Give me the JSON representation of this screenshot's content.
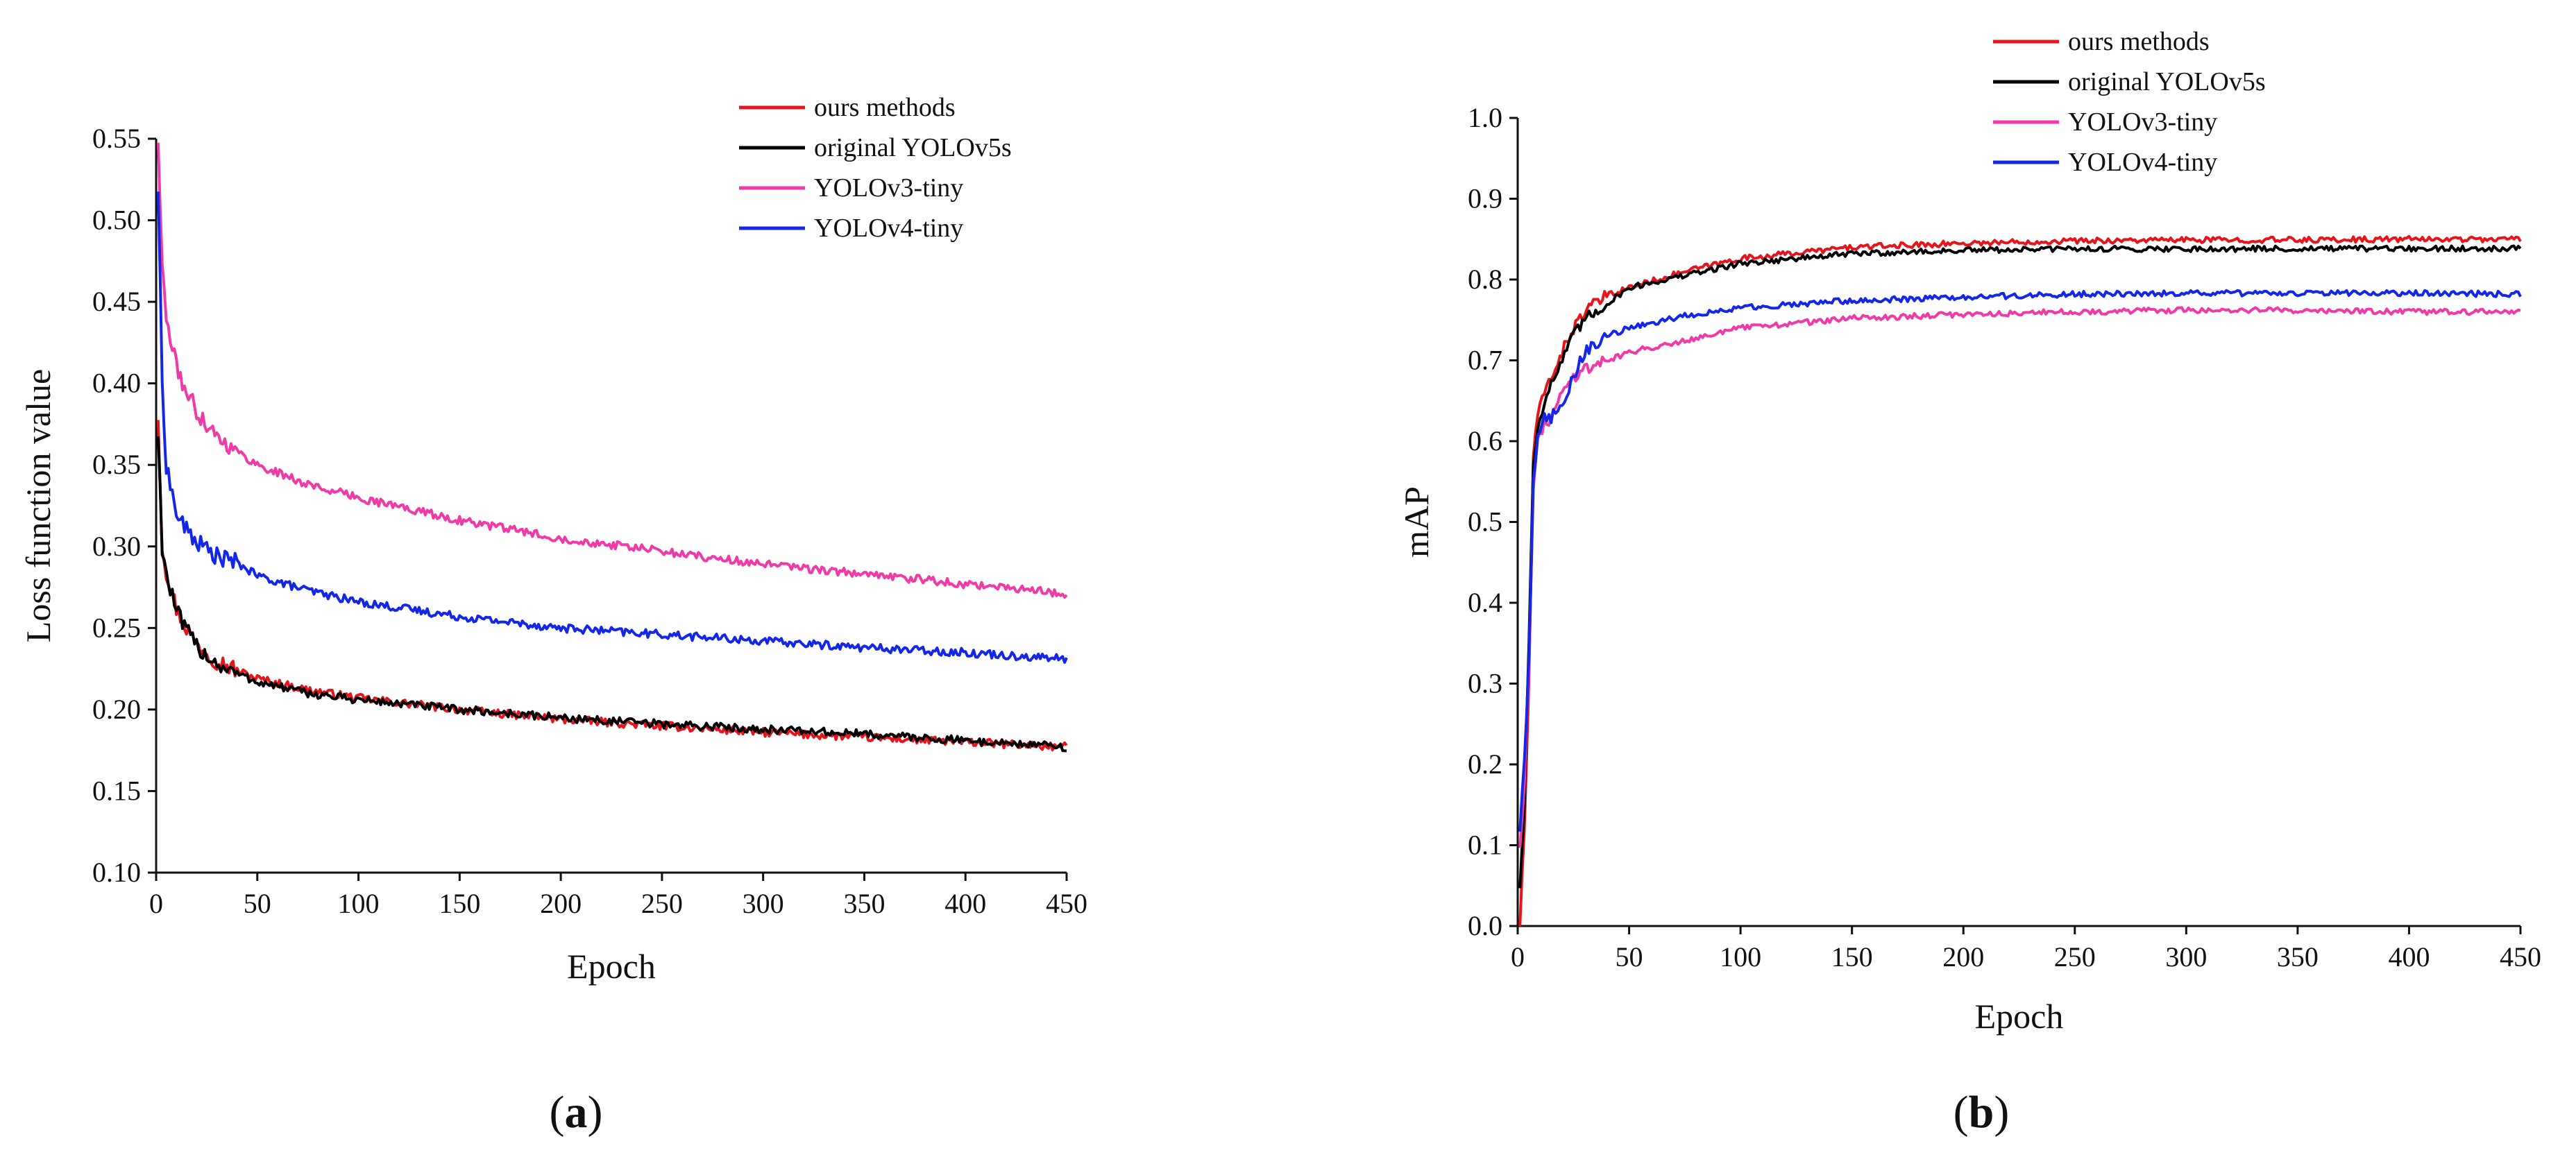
{
  "chart_data": [
    {
      "id": "a",
      "type": "line",
      "panel_label": "a",
      "xlabel": "Epoch",
      "ylabel": "Loss function value",
      "xlim": [
        0,
        450
      ],
      "ylim": [
        0.1,
        0.55
      ],
      "xticks": [
        "0",
        "50",
        "100",
        "150",
        "200",
        "250",
        "300",
        "350",
        "400",
        "450"
      ],
      "yticks": [
        "0.10",
        "0.15",
        "0.20",
        "0.25",
        "0.30",
        "0.35",
        "0.40",
        "0.45",
        "0.50",
        "0.55"
      ],
      "legend_position": "top-right",
      "x": [
        1,
        3,
        5,
        10,
        15,
        20,
        30,
        40,
        50,
        75,
        100,
        150,
        200,
        250,
        300,
        350,
        400,
        450
      ],
      "series": [
        {
          "name": "ours methods",
          "color": "#e8141b",
          "values": [
            0.38,
            0.3,
            0.285,
            0.262,
            0.25,
            0.24,
            0.23,
            0.224,
            0.219,
            0.212,
            0.207,
            0.2,
            0.194,
            0.19,
            0.186,
            0.183,
            0.18,
            0.177
          ]
        },
        {
          "name": "original YOLOv5s",
          "color": "#000000",
          "values": [
            0.37,
            0.3,
            0.283,
            0.26,
            0.248,
            0.239,
            0.228,
            0.222,
            0.217,
            0.21,
            0.206,
            0.2,
            0.195,
            0.191,
            0.188,
            0.185,
            0.181,
            0.177
          ]
        },
        {
          "name": "YOLOv3-tiny",
          "color": "#f03aa8",
          "values": [
            0.55,
            0.47,
            0.44,
            0.41,
            0.395,
            0.383,
            0.368,
            0.358,
            0.35,
            0.338,
            0.33,
            0.316,
            0.305,
            0.297,
            0.289,
            0.283,
            0.277,
            0.271
          ]
        },
        {
          "name": "YOLOv4-tiny",
          "color": "#1427e8",
          "values": [
            0.52,
            0.4,
            0.35,
            0.32,
            0.31,
            0.303,
            0.294,
            0.29,
            0.282,
            0.273,
            0.266,
            0.257,
            0.25,
            0.246,
            0.242,
            0.238,
            0.235,
            0.231
          ]
        }
      ]
    },
    {
      "id": "b",
      "type": "line",
      "panel_label": "b",
      "xlabel": "Epoch",
      "ylabel": "mAP",
      "xlim": [
        0,
        450
      ],
      "ylim": [
        0.0,
        1.0
      ],
      "xticks": [
        "0",
        "50",
        "100",
        "150",
        "200",
        "250",
        "300",
        "350",
        "400",
        "450"
      ],
      "yticks": [
        "0.0",
        "0.1",
        "0.2",
        "0.3",
        "0.4",
        "0.5",
        "0.6",
        "0.7",
        "0.8",
        "0.9",
        "1.0"
      ],
      "legend_position": "top-right",
      "x": [
        1,
        3,
        5,
        7,
        9,
        12,
        15,
        20,
        25,
        30,
        40,
        50,
        75,
        100,
        150,
        200,
        250,
        300,
        350,
        400,
        450
      ],
      "series": [
        {
          "name": "ours methods",
          "color": "#e8141b",
          "values": [
            0.0,
            0.12,
            0.3,
            0.58,
            0.63,
            0.66,
            0.68,
            0.71,
            0.74,
            0.76,
            0.78,
            0.79,
            0.81,
            0.826,
            0.84,
            0.845,
            0.848,
            0.849,
            0.849,
            0.85,
            0.85
          ]
        },
        {
          "name": "original YOLOv5s",
          "color": "#000000",
          "values": [
            0.05,
            0.15,
            0.35,
            0.57,
            0.62,
            0.65,
            0.67,
            0.7,
            0.73,
            0.75,
            0.77,
            0.79,
            0.805,
            0.82,
            0.832,
            0.836,
            0.838,
            0.838,
            0.838,
            0.838,
            0.839
          ]
        },
        {
          "name": "YOLOv3-tiny",
          "color": "#f03aa8",
          "values": [
            0.1,
            0.18,
            0.32,
            0.54,
            0.6,
            0.62,
            0.63,
            0.66,
            0.68,
            0.69,
            0.7,
            0.71,
            0.725,
            0.74,
            0.752,
            0.757,
            0.76,
            0.762,
            0.762,
            0.76,
            0.76
          ]
        },
        {
          "name": "YOLOv4-tiny",
          "color": "#1427e8",
          "values": [
            0.12,
            0.2,
            0.33,
            0.55,
            0.61,
            0.63,
            0.63,
            0.64,
            0.68,
            0.71,
            0.73,
            0.74,
            0.755,
            0.765,
            0.774,
            0.778,
            0.782,
            0.783,
            0.783,
            0.783,
            0.782
          ]
        }
      ]
    }
  ]
}
